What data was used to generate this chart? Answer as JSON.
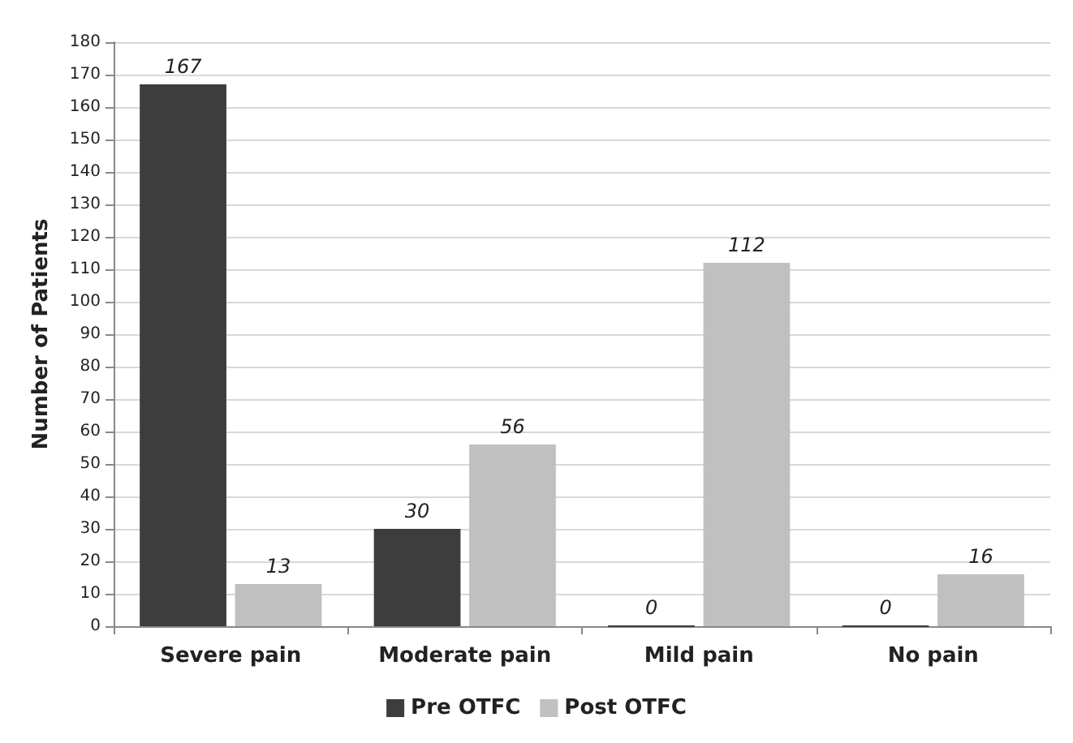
{
  "chart_data": {
    "type": "bar",
    "ylabel": "Number of Patients",
    "categories": [
      "Severe pain",
      "Moderate pain",
      "Mild pain",
      "No pain"
    ],
    "series": [
      {
        "name": "Pre OTFC",
        "color": "#3d3d3d",
        "values": [
          167,
          30,
          0,
          0
        ]
      },
      {
        "name": "Post OTFC",
        "color": "#c0c0c0",
        "values": [
          13,
          56,
          112,
          16
        ]
      }
    ],
    "ylim": [
      0,
      180
    ],
    "yticks": [
      0,
      10,
      20,
      30,
      40,
      50,
      60,
      70,
      80,
      90,
      100,
      110,
      120,
      130,
      140,
      150,
      160,
      170,
      180
    ],
    "grid": "y",
    "legend": "bottom",
    "data_labels": true
  }
}
